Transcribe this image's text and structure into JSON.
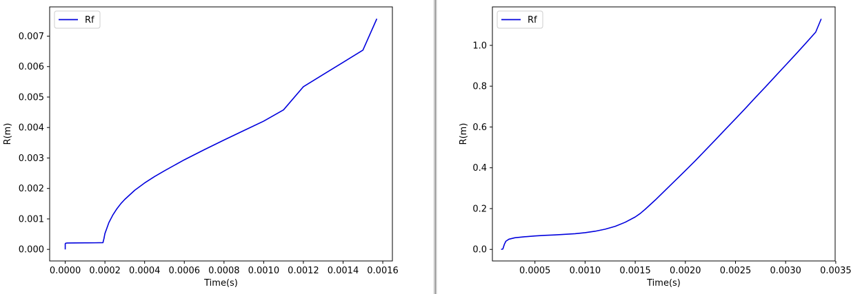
{
  "colors": {
    "series": "#0000dd",
    "axis": "#000000",
    "legend_border": "#cccccc"
  },
  "chart_data": [
    {
      "type": "line",
      "title": "",
      "xlabel": "Time(s)",
      "ylabel": "R(m)",
      "xlim": [
        -7.85e-05,
        0.0016485
      ],
      "ylim": [
        -0.00038,
        0.00796
      ],
      "xticks": [
        0.0,
        0.0002,
        0.0004,
        0.0006,
        0.0008,
        0.001,
        0.0012,
        0.0014,
        0.0016
      ],
      "xtick_labels": [
        "0.0000",
        "0.0002",
        "0.0004",
        "0.0006",
        "0.0008",
        "0.0010",
        "0.0012",
        "0.0014",
        "0.0016"
      ],
      "yticks": [
        0.0,
        0.001,
        0.002,
        0.003,
        0.004,
        0.005,
        0.006,
        0.007
      ],
      "ytick_labels": [
        "0.000",
        "0.001",
        "0.002",
        "0.003",
        "0.004",
        "0.005",
        "0.006",
        "0.007"
      ],
      "grid": false,
      "legend_position": "top-left",
      "series": [
        {
          "name": "Rf",
          "x": [
            0.0,
            0.0,
            2e-06,
            1e-05,
            5e-05,
            0.0001,
            0.00015,
            0.00019,
            0.000195,
            0.0002,
            0.00021,
            0.00022,
            0.00024,
            0.00026,
            0.00028,
            0.0003,
            0.00035,
            0.0004,
            0.00045,
            0.0005,
            0.0006,
            0.0007,
            0.0008,
            0.0009,
            0.001,
            0.0011,
            0.0012,
            0.0013,
            0.0014,
            0.0015,
            0.00157
          ],
          "y": [
            0.0,
            0.00018,
            0.0002,
            0.00021,
            0.000212,
            0.000214,
            0.000216,
            0.00022,
            0.00035,
            0.00052,
            0.0007,
            0.00088,
            0.00113,
            0.00133,
            0.0015,
            0.00164,
            0.00194,
            0.00218,
            0.00239,
            0.00258,
            0.00294,
            0.00327,
            0.00359,
            0.0039,
            0.00421,
            0.00458,
            0.00534,
            0.00574,
            0.00614,
            0.00654,
            0.00757
          ]
        }
      ]
    },
    {
      "type": "line",
      "title": "",
      "xlabel": "Time(s)",
      "ylabel": "R(m)",
      "xlim": [
        7.57e-05,
        0.0034937
      ],
      "ylim": [
        -0.0566,
        1.1886
      ],
      "xticks": [
        0.0005,
        0.001,
        0.0015,
        0.002,
        0.0025,
        0.003,
        0.0035
      ],
      "xtick_labels": [
        "0.0005",
        "0.0010",
        "0.0015",
        "0.0020",
        "0.0025",
        "0.0030",
        "0.0035"
      ],
      "yticks": [
        0.0,
        0.2,
        0.4,
        0.6,
        0.8,
        1.0
      ],
      "ytick_labels": [
        "0.0",
        "0.2",
        "0.4",
        "0.6",
        "0.8",
        "1.0"
      ],
      "grid": false,
      "legend_position": "top-left",
      "series": [
        {
          "name": "Rf",
          "x": [
            0.000163,
            0.00018,
            0.000195,
            0.00021,
            0.00024,
            0.0003,
            0.0004,
            0.0005,
            0.0006,
            0.0007,
            0.0008,
            0.0009,
            0.001,
            0.0011,
            0.0012,
            0.0013,
            0.0014,
            0.0015,
            0.00155,
            0.0016,
            0.0017,
            0.0018,
            0.0019,
            0.002,
            0.0021,
            0.0022,
            0.0023,
            0.0024,
            0.0025,
            0.0026,
            0.0027,
            0.0028,
            0.0029,
            0.003,
            0.0031,
            0.0032,
            0.0033,
            0.003355
          ],
          "y": [
            0.0,
            0.002,
            0.025,
            0.04,
            0.05,
            0.057,
            0.062,
            0.066,
            0.069,
            0.071,
            0.074,
            0.077,
            0.082,
            0.089,
            0.099,
            0.113,
            0.133,
            0.159,
            0.176,
            0.197,
            0.242,
            0.29,
            0.338,
            0.386,
            0.435,
            0.486,
            0.537,
            0.589,
            0.64,
            0.692,
            0.745,
            0.797,
            0.85,
            0.903,
            0.956,
            1.01,
            1.065,
            1.13
          ]
        }
      ]
    }
  ]
}
